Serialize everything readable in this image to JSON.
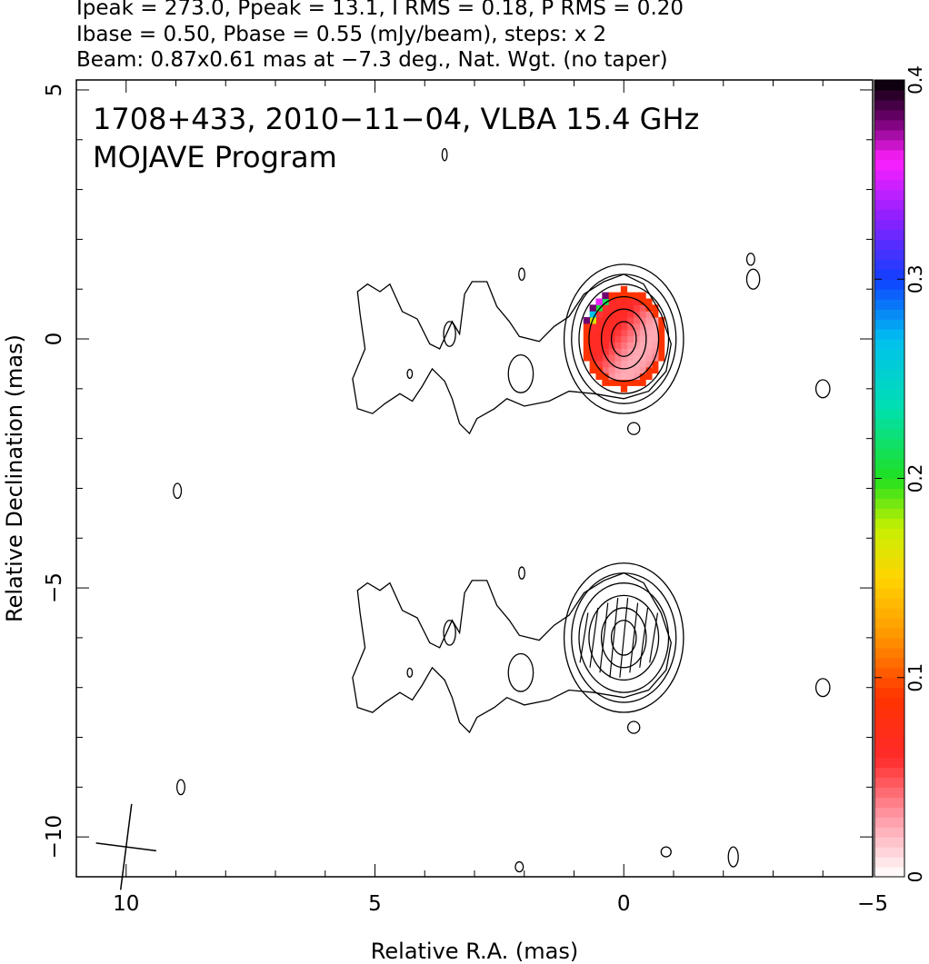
{
  "header_lines": [
    "Ipeak = 273.0, Ppeak = 13.1, I RMS = 0.18, P RMS = 0.20",
    "Ibase = 0.50, Pbase = 0.55 (mJy/beam), steps: x 2",
    "Beam: 0.87x0.61 mas at −7.3 deg., Nat. Wgt. (no taper)"
  ],
  "annotation": [
    "1708+433, 2010−11−04, VLBA 15.4 GHz",
    "MOJAVE Program"
  ],
  "chart_data": {
    "type": "heatmap",
    "xlabel": "Relative R.A. (mas)",
    "ylabel": "Relative Declination (mas)",
    "xlim": [
      11,
      -5
    ],
    "ylim": [
      -10.8,
      5.2
    ],
    "x_ticks": [
      10,
      5,
      0,
      -5
    ],
    "y_ticks": [
      5,
      0,
      -5,
      -10
    ],
    "x_tick_labels": [
      "10",
      "5",
      "0",
      "−5"
    ],
    "y_tick_labels": [
      "5",
      "0",
      "−5",
      "−10"
    ],
    "colorbar": {
      "min": 0,
      "max": 0.4,
      "ticks": [
        0,
        0.1,
        0.2,
        0.3,
        0.4
      ],
      "tick_labels": [
        "0",
        "0.1",
        "0.2",
        "0.3",
        "0.4"
      ]
    },
    "panels": [
      {
        "name": "total intensity contours with fractional polarization color",
        "center": [
          0,
          0
        ]
      },
      {
        "name": "total intensity contours with EVPA ticks",
        "center": [
          0,
          -6
        ]
      }
    ],
    "core_contour_radii_mas": [
      [
        0.25,
        0.35
      ],
      [
        0.45,
        0.6
      ],
      [
        0.7,
        0.85
      ],
      [
        0.9,
        1.1
      ],
      [
        1.05,
        1.3
      ],
      [
        1.2,
        1.5
      ]
    ],
    "beam": {
      "major_mas": 0.87,
      "minor_mas": 0.61,
      "pa_deg": -7.3,
      "center": [
        10,
        -10.2
      ]
    }
  }
}
